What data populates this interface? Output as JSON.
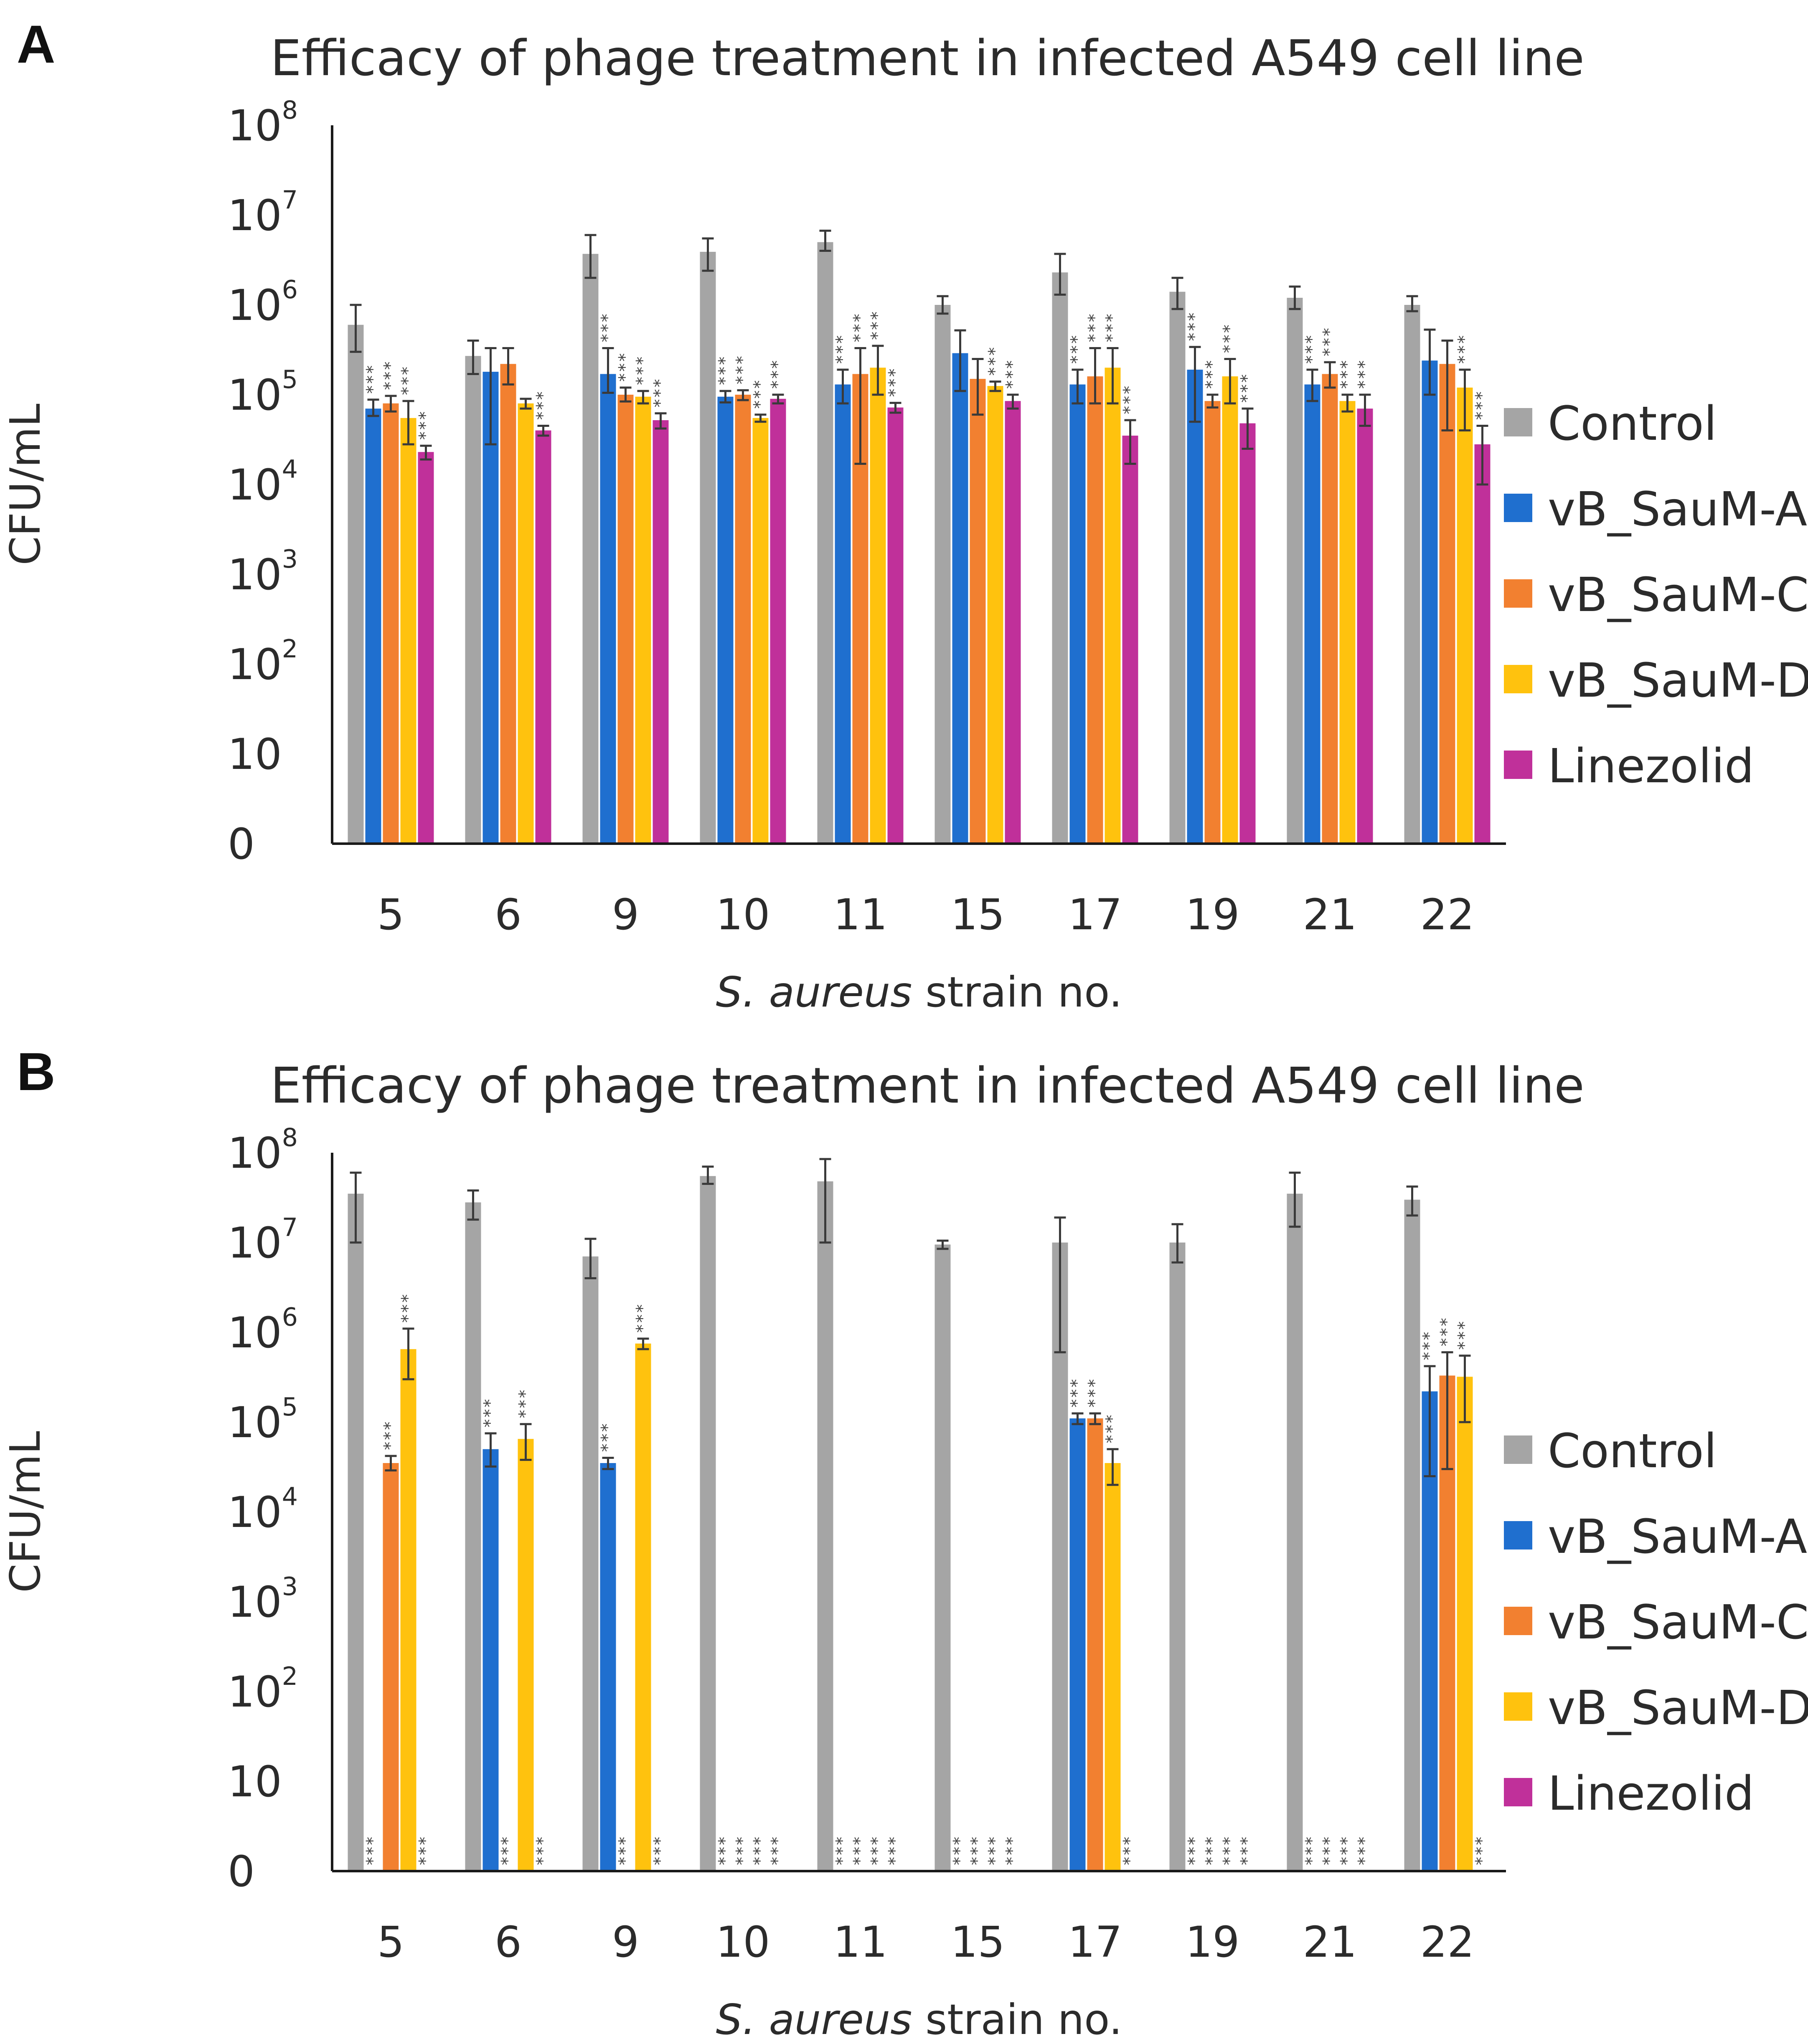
{
  "chart_data": [
    {
      "panel": "A",
      "type": "bar",
      "title": "Efficacy of phage treatment in infected A549 cell line",
      "ylabel": "CFU/mL",
      "xlabel_italic": "S. aureus",
      "xlabel_rest": " strain no.",
      "yscale": "log",
      "y_tick_labels": [
        {
          "base": "0",
          "exp": ""
        },
        {
          "base": "10",
          "exp": ""
        },
        {
          "base": "10",
          "exp": "2"
        },
        {
          "base": "10",
          "exp": "3"
        },
        {
          "base": "10",
          "exp": "4"
        },
        {
          "base": "10",
          "exp": "5"
        },
        {
          "base": "10",
          "exp": "6"
        },
        {
          "base": "10",
          "exp": "7"
        },
        {
          "base": "10",
          "exp": "8"
        }
      ],
      "ylim_log10": [
        0,
        8
      ],
      "legend_position": "right",
      "significance_mark": "***",
      "categories": [
        "5",
        "6",
        "9",
        "10",
        "11",
        "15",
        "17",
        "19",
        "21",
        "22"
      ],
      "series": [
        {
          "name": "Control",
          "color": "#a5a5a5",
          "values": [
            600000,
            270000,
            3700000,
            3900000,
            5000000,
            1000000,
            2300000,
            1400000,
            1200000,
            1000000
          ],
          "err_low": [
            300000,
            170000,
            2000000,
            2400000,
            4000000,
            800000,
            1300000,
            900000,
            900000,
            850000
          ],
          "err_high": [
            1000000,
            400000,
            6000000,
            5500000,
            6700000,
            1250000,
            3700000,
            2000000,
            1600000,
            1250000
          ],
          "sig": [
            false,
            false,
            false,
            false,
            false,
            false,
            false,
            false,
            false,
            false
          ]
        },
        {
          "name": "vB_SauM-A",
          "color": "#1f6fcf",
          "values": [
            70000,
            180000,
            170000,
            95000,
            130000,
            290000,
            130000,
            190000,
            130000,
            240000
          ],
          "err_low": [
            58000,
            28000,
            105000,
            82000,
            80000,
            110000,
            80000,
            50000,
            85000,
            100000
          ],
          "err_high": [
            88000,
            330000,
            330000,
            110000,
            190000,
            520000,
            190000,
            340000,
            190000,
            530000
          ],
          "sig": [
            true,
            false,
            true,
            true,
            true,
            false,
            true,
            true,
            true,
            false
          ]
        },
        {
          "name": "vB_SauM-C",
          "color": "#f28030",
          "values": [
            80000,
            220000,
            100000,
            100000,
            170000,
            150000,
            160000,
            85000,
            170000,
            220000
          ],
          "err_low": [
            65000,
            130000,
            84000,
            87000,
            17000,
            60000,
            80000,
            72000,
            120000,
            40000
          ],
          "err_high": [
            97000,
            330000,
            120000,
            112000,
            330000,
            250000,
            330000,
            100000,
            230000,
            400000
          ],
          "sig": [
            true,
            false,
            true,
            true,
            true,
            false,
            true,
            true,
            true,
            false
          ]
        },
        {
          "name": "vB_SauM-D",
          "color": "#ffc20e",
          "values": [
            55000,
            80000,
            95000,
            55000,
            200000,
            125000,
            200000,
            160000,
            85000,
            120000
          ],
          "err_low": [
            28000,
            70000,
            80000,
            50000,
            100000,
            110000,
            80000,
            80000,
            65000,
            40000
          ],
          "err_high": [
            85000,
            90000,
            110000,
            60000,
            350000,
            140000,
            330000,
            250000,
            100000,
            190000
          ],
          "sig": [
            true,
            false,
            true,
            true,
            true,
            true,
            true,
            true,
            true,
            true
          ]
        },
        {
          "name": "Linezolid",
          "color": "#c0309a",
          "values": [
            23000,
            40000,
            52000,
            90000,
            72000,
            85000,
            35000,
            48000,
            70000,
            28000
          ],
          "err_low": [
            19000,
            35000,
            42000,
            80000,
            63000,
            70000,
            17000,
            25000,
            45000,
            10000
          ],
          "err_high": [
            27000,
            45000,
            62000,
            100000,
            81000,
            100000,
            52000,
            70000,
            100000,
            45000
          ],
          "sig": [
            true,
            true,
            true,
            true,
            true,
            true,
            true,
            true,
            true,
            true
          ]
        }
      ]
    },
    {
      "panel": "B",
      "type": "bar",
      "title": "Efficacy of phage treatment in infected A549 cell line",
      "ylabel": "CFU/mL",
      "xlabel_italic": "S. aureus",
      "xlabel_rest": " strain no.",
      "yscale": "log",
      "y_tick_labels": [
        {
          "base": "0",
          "exp": ""
        },
        {
          "base": "10",
          "exp": ""
        },
        {
          "base": "10",
          "exp": "2"
        },
        {
          "base": "10",
          "exp": "3"
        },
        {
          "base": "10",
          "exp": "4"
        },
        {
          "base": "10",
          "exp": "5"
        },
        {
          "base": "10",
          "exp": "6"
        },
        {
          "base": "10",
          "exp": "7"
        },
        {
          "base": "10",
          "exp": "8"
        }
      ],
      "ylim_log10": [
        0,
        8
      ],
      "legend_position": "right",
      "significance_mark": "***",
      "categories": [
        "5",
        "6",
        "9",
        "10",
        "11",
        "15",
        "17",
        "19",
        "21",
        "22"
      ],
      "series": [
        {
          "name": "Control",
          "color": "#a5a5a5",
          "values": [
            35000000,
            28000000,
            7000000,
            55000000,
            48000000,
            9500000,
            10000000,
            10000000,
            35000000,
            30000000
          ],
          "err_low": [
            10000000,
            18000000,
            4000000,
            45000000,
            10000000,
            8500000,
            600000,
            6000000,
            15000000,
            20000000
          ],
          "err_high": [
            60000000,
            38000000,
            11000000,
            70000000,
            85000000,
            10500000,
            19000000,
            16000000,
            60000000,
            42000000
          ],
          "sig": [
            false,
            false,
            false,
            false,
            false,
            false,
            false,
            false,
            false,
            false
          ]
        },
        {
          "name": "vB_SauM-A",
          "color": "#1f6fcf",
          "values": [
            1,
            50000,
            35000,
            1,
            1,
            1,
            110000,
            1,
            1,
            220000
          ],
          "err_low": [
            1,
            32000,
            30000,
            1,
            1,
            1,
            95000,
            1,
            1,
            25000
          ],
          "err_high": [
            1,
            75000,
            40000,
            1,
            1,
            1,
            125000,
            1,
            1,
            420000
          ],
          "sig": [
            true,
            true,
            true,
            true,
            true,
            true,
            true,
            true,
            true,
            true
          ]
        },
        {
          "name": "vB_SauM-C",
          "color": "#f28030",
          "values": [
            35000,
            1,
            1,
            1,
            1,
            1,
            110000,
            1,
            1,
            330000
          ],
          "err_low": [
            29000,
            1,
            1,
            1,
            1,
            1,
            95000,
            1,
            1,
            30000
          ],
          "err_high": [
            42000,
            1,
            1,
            1,
            1,
            1,
            125000,
            1,
            1,
            600000
          ],
          "sig": [
            true,
            true,
            true,
            true,
            true,
            true,
            true,
            true,
            true,
            true
          ]
        },
        {
          "name": "vB_SauM-D",
          "color": "#ffc20e",
          "values": [
            650000,
            65000,
            750000,
            1,
            1,
            1,
            35000,
            1,
            1,
            320000
          ],
          "err_low": [
            300000,
            38000,
            650000,
            1,
            1,
            1,
            20000,
            1,
            1,
            100000
          ],
          "err_high": [
            1100000,
            95000,
            850000,
            1,
            1,
            1,
            50000,
            1,
            1,
            550000
          ],
          "sig": [
            true,
            true,
            true,
            true,
            true,
            true,
            true,
            true,
            true,
            true
          ]
        },
        {
          "name": "Linezolid",
          "color": "#c0309a",
          "values": [
            1,
            1,
            1,
            1,
            1,
            1,
            1,
            1,
            1,
            1
          ],
          "err_low": [
            1,
            1,
            1,
            1,
            1,
            1,
            1,
            1,
            1,
            1
          ],
          "err_high": [
            1,
            1,
            1,
            1,
            1,
            1,
            1,
            1,
            1,
            1
          ],
          "sig": [
            true,
            true,
            true,
            true,
            true,
            true,
            true,
            true,
            true,
            true
          ]
        }
      ]
    }
  ]
}
